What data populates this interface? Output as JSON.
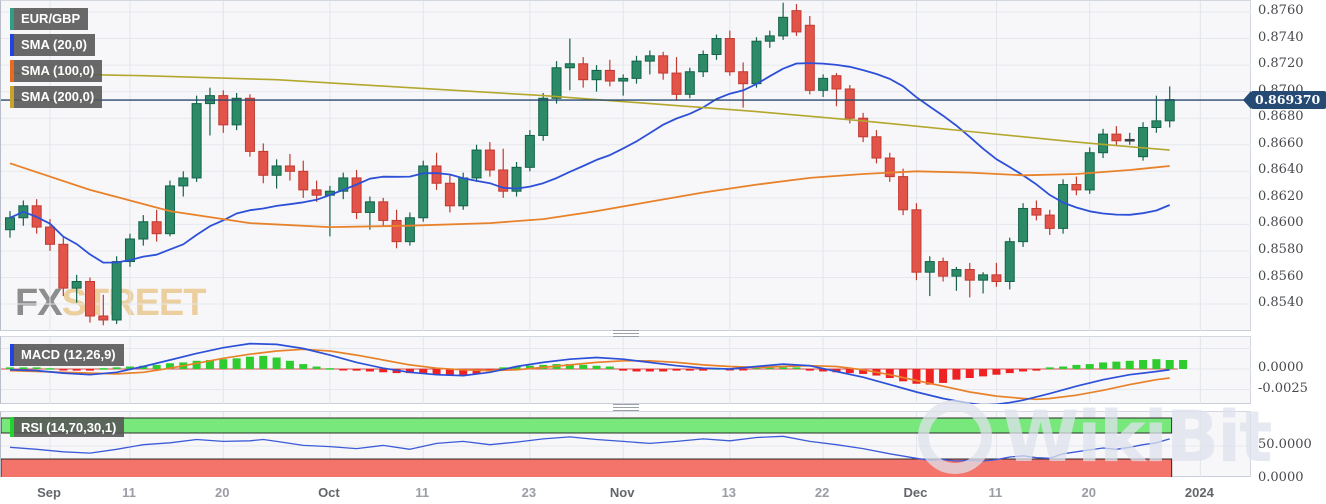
{
  "title": "EUR/GBP daily chart with SMA, MACD, RSI",
  "legend": {
    "items": [
      {
        "label": "EUR/GBP",
        "color": "#2e9e86"
      },
      {
        "label": "SMA (20,0)",
        "color": "#2244dd"
      },
      {
        "label": "SMA (100,0)",
        "color": "#e86a1f"
      },
      {
        "label": "SMA (200,0)",
        "color": "#c9a227"
      }
    ]
  },
  "macd_box": {
    "label": "MACD (12,26,9)",
    "color": "#2244dd"
  },
  "rsi_box": {
    "label": "RSI (14,70,30,1)",
    "color": "#21d32b"
  },
  "badge": {
    "label": "0.869370",
    "value": 0.86937
  },
  "watermark": {
    "fx": "FX",
    "street": "STREET",
    "wikibit": "WikiBit"
  },
  "price_axis": {
    "labels": [
      "0.8760",
      "0.8740",
      "0.8720",
      "0.8700",
      "0.8680",
      "0.8660",
      "0.8640",
      "0.8620",
      "0.8600",
      "0.8580",
      "0.8560",
      "0.8540"
    ],
    "values": [
      0.876,
      0.874,
      0.872,
      0.87,
      0.868,
      0.866,
      0.864,
      0.862,
      0.86,
      0.858,
      0.856,
      0.854
    ]
  },
  "macd_axis": {
    "labels": [
      "0.0000",
      "-0.0025"
    ],
    "values": [
      0,
      -25
    ]
  },
  "rsi_axis": {
    "labels": [
      "50.0000",
      "0.0000"
    ],
    "values": [
      50,
      0
    ]
  },
  "colors": {
    "candle_up": "#2d8a67",
    "candle_up_stroke": "#14634a",
    "candle_down": "#e2544a",
    "candle_down_stroke": "#c13a30",
    "doji": "#3a3f46",
    "sma20": "#2c50d8",
    "sma100": "#e8822a",
    "sma200": "#b3a72e",
    "price_line": "#27496f",
    "grid": "#e5e8ee",
    "vgrid": "#e2e5eb",
    "macd_line": "#2c50d8",
    "signal_line": "#e8822a",
    "zero_line": "#d05050",
    "hist_up": "#2ecc2e",
    "hist_down": "#ee2222",
    "rsi_line": "#3d5bd8",
    "band_green": "#78e87c",
    "band_red": "#f4736b",
    "band_stroke": "#1a1a1a"
  },
  "chart_data": {
    "type": "candlestick",
    "title": "EUR/GBP",
    "x_ticks": [
      {
        "i": 3,
        "label": "Sep",
        "month": true
      },
      {
        "i": 9,
        "label": "11",
        "month": false
      },
      {
        "i": 16,
        "label": "20",
        "month": false
      },
      {
        "i": 24,
        "label": "Oct",
        "month": true
      },
      {
        "i": 31,
        "label": "11",
        "month": false
      },
      {
        "i": 39,
        "label": "23",
        "month": false
      },
      {
        "i": 46,
        "label": "Nov",
        "month": true
      },
      {
        "i": 54,
        "label": "13",
        "month": false
      },
      {
        "i": 61,
        "label": "22",
        "month": false
      },
      {
        "i": 68,
        "label": "Dec",
        "month": true
      },
      {
        "i": 74,
        "label": "11",
        "month": false
      },
      {
        "i": 81,
        "label": "20",
        "month": false
      },
      {
        "i": 89.3,
        "label": "2024",
        "month": true
      }
    ],
    "ylim": [
      0.852,
      0.8768
    ],
    "candles": [
      [
        0.8596,
        0.861,
        0.859,
        0.8605
      ],
      [
        0.8605,
        0.8618,
        0.8599,
        0.8614
      ],
      [
        0.8614,
        0.8619,
        0.8593,
        0.8598
      ],
      [
        0.8598,
        0.8604,
        0.858,
        0.8585
      ],
      [
        0.8585,
        0.8591,
        0.8546,
        0.8552
      ],
      [
        0.8552,
        0.8562,
        0.8541,
        0.8557
      ],
      [
        0.8557,
        0.856,
        0.8526,
        0.8531
      ],
      [
        0.8531,
        0.8547,
        0.8524,
        0.8528
      ],
      [
        0.8528,
        0.8576,
        0.8525,
        0.8572
      ],
      [
        0.8572,
        0.8593,
        0.8568,
        0.8589
      ],
      [
        0.8589,
        0.8607,
        0.8584,
        0.8602
      ],
      [
        0.8602,
        0.8611,
        0.8587,
        0.8593
      ],
      [
        0.8593,
        0.8633,
        0.8591,
        0.8629
      ],
      [
        0.8629,
        0.864,
        0.8621,
        0.8635
      ],
      [
        0.8635,
        0.8697,
        0.8632,
        0.8691
      ],
      [
        0.8691,
        0.8703,
        0.8667,
        0.8697
      ],
      [
        0.8697,
        0.8701,
        0.8669,
        0.8675
      ],
      [
        0.8675,
        0.8699,
        0.8671,
        0.8695
      ],
      [
        0.8695,
        0.8698,
        0.8651,
        0.8655
      ],
      [
        0.8655,
        0.8661,
        0.8631,
        0.8637
      ],
      [
        0.8637,
        0.8649,
        0.8627,
        0.8644
      ],
      [
        0.8644,
        0.8653,
        0.8633,
        0.864
      ],
      [
        0.864,
        0.8648,
        0.862,
        0.8626
      ],
      [
        0.8626,
        0.8633,
        0.8617,
        0.8622
      ],
      [
        0.8622,
        0.8629,
        0.8591,
        0.8625
      ],
      [
        0.8625,
        0.8639,
        0.8619,
        0.8635
      ],
      [
        0.8635,
        0.8641,
        0.8604,
        0.8609
      ],
      [
        0.8609,
        0.8621,
        0.8596,
        0.8617
      ],
      [
        0.8617,
        0.862,
        0.8599,
        0.8603
      ],
      [
        0.8603,
        0.8611,
        0.8582,
        0.8587
      ],
      [
        0.8587,
        0.8609,
        0.8584,
        0.8605
      ],
      [
        0.8605,
        0.8648,
        0.8602,
        0.8644
      ],
      [
        0.8644,
        0.8654,
        0.8626,
        0.8631
      ],
      [
        0.8631,
        0.8637,
        0.8609,
        0.8614
      ],
      [
        0.8614,
        0.8639,
        0.8611,
        0.8635
      ],
      [
        0.8635,
        0.866,
        0.8632,
        0.8656
      ],
      [
        0.8656,
        0.8662,
        0.8636,
        0.8641
      ],
      [
        0.8641,
        0.8657,
        0.862,
        0.8625
      ],
      [
        0.8625,
        0.8647,
        0.8621,
        0.8643
      ],
      [
        0.8643,
        0.8671,
        0.864,
        0.8667
      ],
      [
        0.8667,
        0.8699,
        0.8663,
        0.8695
      ],
      [
        0.8695,
        0.8723,
        0.8691,
        0.8718
      ],
      [
        0.8718,
        0.874,
        0.8701,
        0.8721
      ],
      [
        0.8721,
        0.8726,
        0.8703,
        0.8709
      ],
      [
        0.8709,
        0.872,
        0.87,
        0.8716
      ],
      [
        0.8716,
        0.8724,
        0.8704,
        0.8708
      ],
      [
        0.8708,
        0.8713,
        0.8697,
        0.871
      ],
      [
        0.871,
        0.8727,
        0.8706,
        0.8723
      ],
      [
        0.8723,
        0.8731,
        0.8713,
        0.8727
      ],
      [
        0.8727,
        0.873,
        0.8709,
        0.8714
      ],
      [
        0.8714,
        0.8726,
        0.8694,
        0.8698
      ],
      [
        0.8698,
        0.8718,
        0.8695,
        0.8715
      ],
      [
        0.8715,
        0.8731,
        0.8711,
        0.8728
      ],
      [
        0.8728,
        0.8743,
        0.8724,
        0.874
      ],
      [
        0.874,
        0.8746,
        0.8712,
        0.8715
      ],
      [
        0.8715,
        0.8722,
        0.8688,
        0.8706
      ],
      [
        0.8706,
        0.8741,
        0.8703,
        0.8738
      ],
      [
        0.8738,
        0.8746,
        0.8733,
        0.8742
      ],
      [
        0.8742,
        0.8767,
        0.8739,
        0.8756
      ],
      [
        0.8761,
        0.8766,
        0.8742,
        0.8745
      ],
      [
        0.875,
        0.8757,
        0.8698,
        0.8701
      ],
      [
        0.8701,
        0.8713,
        0.8696,
        0.871
      ],
      [
        0.8712,
        0.8714,
        0.8689,
        0.8702
      ],
      [
        0.8702,
        0.8705,
        0.8676,
        0.868
      ],
      [
        0.868,
        0.8684,
        0.8662,
        0.8666
      ],
      [
        0.8666,
        0.8671,
        0.8646,
        0.865
      ],
      [
        0.865,
        0.8654,
        0.8632,
        0.8636
      ],
      [
        0.8636,
        0.8642,
        0.8607,
        0.8611
      ],
      [
        0.8611,
        0.8616,
        0.8558,
        0.8564
      ],
      [
        0.8564,
        0.8576,
        0.8546,
        0.8572
      ],
      [
        0.8572,
        0.8575,
        0.8557,
        0.8561
      ],
      [
        0.8561,
        0.8568,
        0.855,
        0.8566
      ],
      [
        0.8566,
        0.8571,
        0.8545,
        0.8558
      ],
      [
        0.8558,
        0.8564,
        0.8548,
        0.8562
      ],
      [
        0.8562,
        0.8571,
        0.8553,
        0.8557
      ],
      [
        0.8557,
        0.859,
        0.8551,
        0.8587
      ],
      [
        0.8587,
        0.8616,
        0.8583,
        0.8612
      ],
      [
        0.8612,
        0.8618,
        0.8603,
        0.8607
      ],
      [
        0.8607,
        0.8611,
        0.8592,
        0.8597
      ],
      [
        0.8597,
        0.8634,
        0.8593,
        0.863
      ],
      [
        0.863,
        0.8636,
        0.8622,
        0.8626
      ],
      [
        0.8626,
        0.8658,
        0.8623,
        0.8654
      ],
      [
        0.8654,
        0.8672,
        0.865,
        0.8668
      ],
      [
        0.8668,
        0.8674,
        0.8659,
        0.8663
      ],
      [
        0.8663,
        0.8669,
        0.866,
        0.8664
      ],
      [
        0.8651,
        0.8677,
        0.8648,
        0.8673
      ],
      [
        0.8673,
        0.8697,
        0.8669,
        0.8678
      ],
      [
        0.8678,
        0.8704,
        0.8673,
        0.8694
      ]
    ],
    "doji_indices": [
      84
    ],
    "sma100_points": [
      [
        0,
        0.8646
      ],
      [
        6,
        0.8626
      ],
      [
        12,
        0.861
      ],
      [
        18,
        0.8601
      ],
      [
        24,
        0.8598
      ],
      [
        30,
        0.8599
      ],
      [
        36,
        0.8601
      ],
      [
        40,
        0.8604
      ],
      [
        44,
        0.861
      ],
      [
        48,
        0.8617
      ],
      [
        52,
        0.8624
      ],
      [
        56,
        0.863
      ],
      [
        60,
        0.8635
      ],
      [
        64,
        0.8638
      ],
      [
        68,
        0.864
      ],
      [
        72,
        0.8639
      ],
      [
        76,
        0.8637
      ],
      [
        80,
        0.8638
      ],
      [
        84,
        0.8641
      ],
      [
        87,
        0.8644
      ]
    ],
    "sma200_points": [
      [
        0,
        0.8714
      ],
      [
        10,
        0.8712
      ],
      [
        20,
        0.8709
      ],
      [
        30,
        0.8703
      ],
      [
        40,
        0.8697
      ],
      [
        48,
        0.8691
      ],
      [
        56,
        0.8685
      ],
      [
        64,
        0.8678
      ],
      [
        72,
        0.867
      ],
      [
        80,
        0.8662
      ],
      [
        87,
        0.8656
      ]
    ],
    "macd": {
      "histogram": [
        2,
        2,
        2,
        1,
        -1,
        -2,
        -2,
        1,
        2,
        3,
        4,
        5,
        7,
        8,
        10,
        11,
        12,
        13,
        15,
        16,
        14,
        10,
        6,
        3,
        1,
        -1,
        -2,
        -3,
        -4,
        -5,
        -5,
        -6,
        -7,
        -8,
        -8,
        -6,
        -3,
        2,
        3,
        4,
        5,
        6,
        6,
        5,
        4,
        3,
        -2,
        -3,
        -3,
        -3,
        -2,
        -2,
        -2,
        1,
        -1,
        -1,
        2,
        2,
        2,
        2,
        -2,
        -3,
        -4,
        -5,
        -6,
        -8,
        -11,
        -15,
        -18,
        -19,
        -17,
        -13,
        -11,
        -9,
        -7,
        -5,
        -3,
        -2,
        2,
        3,
        5,
        6,
        8,
        9,
        10,
        11,
        12,
        11,
        11
      ],
      "macd_points": [
        [
          0,
          -1
        ],
        [
          2,
          -2
        ],
        [
          4,
          -5
        ],
        [
          6,
          -7
        ],
        [
          8,
          -4
        ],
        [
          10,
          3
        ],
        [
          12,
          11
        ],
        [
          14,
          19
        ],
        [
          16,
          26
        ],
        [
          18,
          31
        ],
        [
          20,
          30
        ],
        [
          22,
          25
        ],
        [
          24,
          17
        ],
        [
          26,
          8
        ],
        [
          28,
          1
        ],
        [
          30,
          -4
        ],
        [
          32,
          -7
        ],
        [
          34,
          -8
        ],
        [
          36,
          -4
        ],
        [
          38,
          3
        ],
        [
          40,
          8
        ],
        [
          42,
          12
        ],
        [
          44,
          14
        ],
        [
          46,
          12
        ],
        [
          48,
          8
        ],
        [
          50,
          4
        ],
        [
          52,
          1
        ],
        [
          54,
          0
        ],
        [
          56,
          3
        ],
        [
          58,
          6
        ],
        [
          60,
          4
        ],
        [
          62,
          -3
        ],
        [
          64,
          -10
        ],
        [
          66,
          -19
        ],
        [
          68,
          -28
        ],
        [
          70,
          -36
        ],
        [
          72,
          -42
        ],
        [
          73,
          -44
        ],
        [
          74,
          -43
        ],
        [
          75,
          -41
        ],
        [
          76,
          -38
        ],
        [
          78,
          -30
        ],
        [
          80,
          -21
        ],
        [
          82,
          -13
        ],
        [
          84,
          -7
        ],
        [
          86,
          -3
        ],
        [
          87,
          -1
        ]
      ],
      "signal_points": [
        [
          0,
          -2
        ],
        [
          4,
          -4
        ],
        [
          8,
          -6
        ],
        [
          10,
          -4
        ],
        [
          12,
          1
        ],
        [
          14,
          7
        ],
        [
          16,
          13
        ],
        [
          18,
          18
        ],
        [
          20,
          22
        ],
        [
          22,
          24
        ],
        [
          24,
          22
        ],
        [
          26,
          17
        ],
        [
          28,
          11
        ],
        [
          30,
          5
        ],
        [
          32,
          1
        ],
        [
          34,
          -1
        ],
        [
          36,
          -2
        ],
        [
          38,
          -1
        ],
        [
          40,
          2
        ],
        [
          42,
          5
        ],
        [
          44,
          8
        ],
        [
          46,
          10
        ],
        [
          48,
          10
        ],
        [
          50,
          8
        ],
        [
          52,
          5
        ],
        [
          54,
          3
        ],
        [
          56,
          2
        ],
        [
          58,
          3
        ],
        [
          60,
          4
        ],
        [
          62,
          3
        ],
        [
          64,
          -1
        ],
        [
          66,
          -7
        ],
        [
          68,
          -14
        ],
        [
          70,
          -21
        ],
        [
          72,
          -28
        ],
        [
          74,
          -33
        ],
        [
          76,
          -36
        ],
        [
          77,
          -37
        ],
        [
          78,
          -36
        ],
        [
          80,
          -32
        ],
        [
          82,
          -26
        ],
        [
          84,
          -19
        ],
        [
          86,
          -13
        ],
        [
          87,
          -11
        ]
      ]
    },
    "rsi": {
      "points": [
        [
          0,
          48
        ],
        [
          2,
          45
        ],
        [
          4,
          41
        ],
        [
          6,
          39
        ],
        [
          8,
          45
        ],
        [
          10,
          52
        ],
        [
          12,
          55
        ],
        [
          14,
          60
        ],
        [
          16,
          57
        ],
        [
          18,
          58
        ],
        [
          19,
          60
        ],
        [
          20,
          57
        ],
        [
          22,
          51
        ],
        [
          24,
          49
        ],
        [
          26,
          46
        ],
        [
          28,
          51
        ],
        [
          30,
          45
        ],
        [
          32,
          54
        ],
        [
          34,
          57
        ],
        [
          36,
          52
        ],
        [
          38,
          56
        ],
        [
          40,
          61
        ],
        [
          42,
          64
        ],
        [
          44,
          60
        ],
        [
          46,
          57
        ],
        [
          48,
          54
        ],
        [
          50,
          57
        ],
        [
          52,
          61
        ],
        [
          54,
          58
        ],
        [
          56,
          63
        ],
        [
          58,
          65
        ],
        [
          60,
          57
        ],
        [
          62,
          52
        ],
        [
          64,
          46
        ],
        [
          66,
          38
        ],
        [
          68,
          31
        ],
        [
          69,
          28
        ],
        [
          70,
          29
        ],
        [
          71,
          27
        ],
        [
          72,
          28
        ],
        [
          73,
          27
        ],
        [
          74,
          29
        ],
        [
          75,
          33
        ],
        [
          76,
          35
        ],
        [
          77,
          32
        ],
        [
          78,
          31
        ],
        [
          79,
          38
        ],
        [
          80,
          41
        ],
        [
          81,
          44
        ],
        [
          82,
          47
        ],
        [
          83,
          45
        ],
        [
          84,
          48
        ],
        [
          85,
          52
        ],
        [
          86,
          55
        ],
        [
          87,
          61
        ]
      ],
      "upper_band": 70,
      "lower_band": 30
    }
  }
}
